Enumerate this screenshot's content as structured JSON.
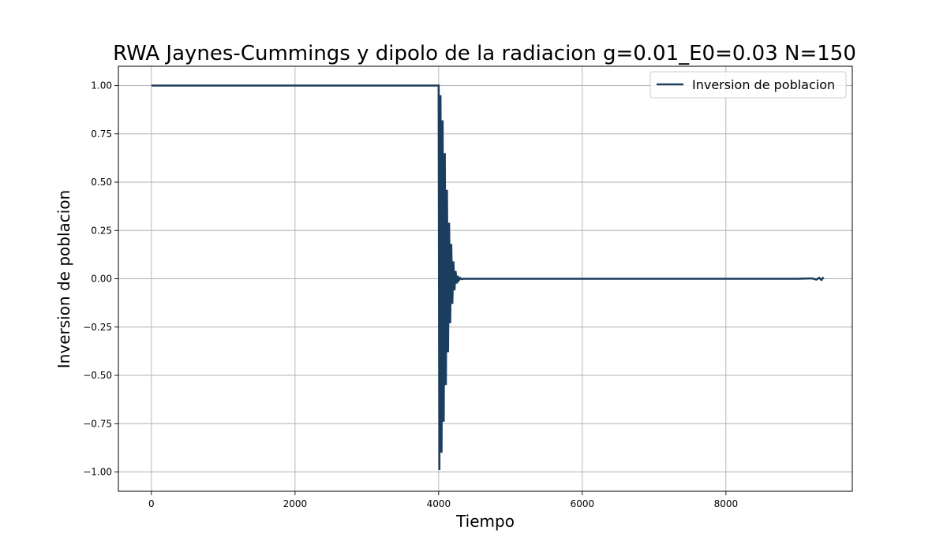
{
  "chart_data": {
    "type": "line",
    "title": "RWA Jaynes-Cummings y dipolo de la radiacion g=0.01_E0=0.03 N=150",
    "xlabel": "Tiempo",
    "ylabel": "Inversion de poblacion",
    "xlim": [
      -460,
      9760
    ],
    "ylim": [
      -1.1,
      1.1
    ],
    "xticks": [
      0,
      2000,
      4000,
      6000,
      8000
    ],
    "xtick_labels": [
      "0",
      "2000",
      "4000",
      "6000",
      "8000"
    ],
    "yticks": [
      1.0,
      0.75,
      0.5,
      0.25,
      0.0,
      -0.25,
      -0.5,
      -0.75,
      -1.0
    ],
    "ytick_labels": [
      "1.00",
      "0.75",
      "0.50",
      "0.25",
      "0.00",
      "−0.25",
      "−0.50",
      "−0.75",
      "−1.00"
    ],
    "grid": true,
    "legend_position": "top-right",
    "series": [
      {
        "name": "Inversion de poblacion",
        "color": "#1b3d5e",
        "points": [
          [
            0,
            1.0
          ],
          [
            1000,
            1.0
          ],
          [
            2000,
            1.0
          ],
          [
            3000,
            1.0
          ],
          [
            4000,
            1.0
          ],
          [
            4010,
            -0.99
          ],
          [
            4025,
            0.95
          ],
          [
            4040,
            -0.9
          ],
          [
            4055,
            0.82
          ],
          [
            4070,
            -0.74
          ],
          [
            4085,
            0.65
          ],
          [
            4100,
            -0.55
          ],
          [
            4115,
            0.46
          ],
          [
            4130,
            -0.38
          ],
          [
            4145,
            0.29
          ],
          [
            4160,
            -0.23
          ],
          [
            4175,
            0.18
          ],
          [
            4190,
            -0.13
          ],
          [
            4205,
            0.09
          ],
          [
            4220,
            -0.06
          ],
          [
            4235,
            0.04
          ],
          [
            4250,
            -0.025
          ],
          [
            4265,
            0.015
          ],
          [
            4280,
            -0.008
          ],
          [
            4300,
            0.004
          ],
          [
            4320,
            -0.002
          ],
          [
            4350,
            0.0
          ],
          [
            5000,
            0.0
          ],
          [
            6000,
            0.0
          ],
          [
            7000,
            0.0
          ],
          [
            8000,
            0.0
          ],
          [
            9000,
            0.0
          ],
          [
            9200,
            0.002
          ],
          [
            9260,
            -0.004
          ],
          [
            9300,
            0.005
          ],
          [
            9330,
            -0.006
          ],
          [
            9360,
            0.008
          ]
        ]
      }
    ]
  }
}
